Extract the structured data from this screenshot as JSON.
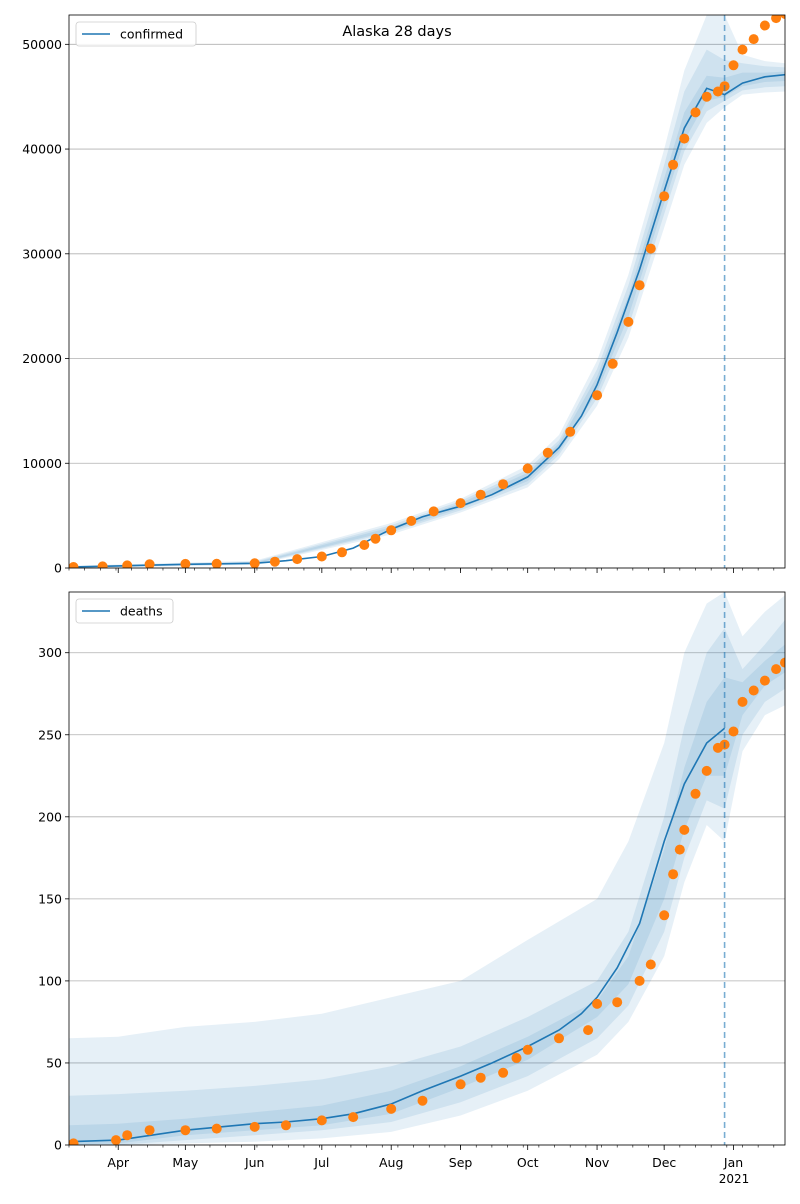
{
  "figure": {
    "title": "Alaska 28 days"
  },
  "colors": {
    "model": "#1f77b4",
    "observed": "#ff7f0e",
    "band": "#1f77b4",
    "grid": "#b0b0b0",
    "vline": "#1f77b4"
  },
  "month_labels": [
    "Apr",
    "May",
    "Jun",
    "Jul",
    "Aug",
    "Sep",
    "Oct",
    "Nov",
    "Dec",
    "Jan"
  ],
  "year_label": "2021",
  "chart_data": [
    {
      "type": "line",
      "legend": "confirmed",
      "legend_position": "upper-left",
      "grid": "horizontal",
      "x_range": [
        "2020-03-10",
        "2021-01-24"
      ],
      "forecast_start": "2020-12-28",
      "ylim": [
        0,
        52800
      ],
      "yticks": [
        0,
        10000,
        20000,
        30000,
        40000,
        50000
      ],
      "model_curve": {
        "x": [
          "2020-03-10",
          "2020-04-01",
          "2020-05-01",
          "2020-06-01",
          "2020-06-15",
          "2020-07-01",
          "2020-07-15",
          "2020-08-01",
          "2020-08-15",
          "2020-09-01",
          "2020-09-15",
          "2020-10-01",
          "2020-10-15",
          "2020-10-25",
          "2020-11-01",
          "2020-11-10",
          "2020-11-20",
          "2020-12-01",
          "2020-12-10",
          "2020-12-20",
          "2020-12-28",
          "2021-01-05",
          "2021-01-15",
          "2021-01-24"
        ],
        "y": [
          100,
          200,
          350,
          450,
          700,
          1100,
          1900,
          3700,
          4900,
          5900,
          7000,
          8700,
          11500,
          14500,
          17500,
          22500,
          28500,
          36000,
          42000,
          45800,
          45200,
          46300,
          46900,
          47100
        ]
      },
      "model_bands": [
        {
          "x": [
            "2020-03-10",
            "2020-06-01",
            "2020-08-01",
            "2020-09-01",
            "2020-10-01",
            "2020-10-15",
            "2020-11-01",
            "2020-11-15",
            "2020-12-01",
            "2020-12-10",
            "2020-12-20",
            "2020-12-28",
            "2021-01-05",
            "2021-01-15",
            "2021-01-24"
          ],
          "low": [
            0,
            300,
            3200,
            5300,
            7700,
            10400,
            15500,
            22000,
            32500,
            38500,
            42500,
            44000,
            45200,
            45400,
            45500
          ],
          "high": [
            200,
            700,
            4300,
            6600,
            9800,
            12700,
            19800,
            28000,
            40000,
            47500,
            52800,
            52800,
            49000,
            48400,
            48200
          ]
        },
        {
          "x": [
            "2020-03-10",
            "2020-06-01",
            "2020-08-01",
            "2020-09-01",
            "2020-10-01",
            "2020-10-15",
            "2020-11-01",
            "2020-11-15",
            "2020-12-01",
            "2020-12-10",
            "2020-12-20",
            "2020-12-28",
            "2021-01-05",
            "2021-01-15",
            "2021-01-24"
          ],
          "low": [
            30,
            350,
            3400,
            5500,
            8000,
            10800,
            16200,
            23000,
            33800,
            39800,
            43600,
            44600,
            45600,
            45900,
            46000
          ],
          "high": [
            170,
            600,
            4100,
            6400,
            9400,
            12200,
            19000,
            27000,
            38500,
            45500,
            49500,
            48500,
            48200,
            47900,
            47800
          ]
        },
        {
          "x": [
            "2020-03-10",
            "2020-06-01",
            "2020-08-01",
            "2020-09-01",
            "2020-10-01",
            "2020-10-15",
            "2020-11-01",
            "2020-11-15",
            "2020-12-01",
            "2020-12-10",
            "2020-12-20",
            "2020-12-28",
            "2021-01-05",
            "2021-01-15",
            "2021-01-24"
          ],
          "low": [
            60,
            400,
            3550,
            5700,
            8300,
            11100,
            16800,
            24000,
            34800,
            40800,
            44600,
            45000,
            46000,
            46400,
            46500
          ],
          "high": [
            140,
            520,
            3900,
            6200,
            9100,
            11900,
            18300,
            26000,
            37200,
            43500,
            47000,
            46800,
            47300,
            47300,
            47400
          ]
        }
      ],
      "observed_points": {
        "x": [
          "2020-03-12",
          "2020-03-25",
          "2020-04-05",
          "2020-04-15",
          "2020-05-01",
          "2020-05-15",
          "2020-06-01",
          "2020-06-10",
          "2020-06-20",
          "2020-07-01",
          "2020-07-10",
          "2020-07-20",
          "2020-07-25",
          "2020-08-01",
          "2020-08-10",
          "2020-08-20",
          "2020-09-01",
          "2020-09-10",
          "2020-09-20",
          "2020-10-01",
          "2020-10-10",
          "2020-10-20",
          "2020-11-01",
          "2020-11-08",
          "2020-11-15",
          "2020-11-20",
          "2020-11-25",
          "2020-12-01",
          "2020-12-05",
          "2020-12-10",
          "2020-12-15",
          "2020-12-20",
          "2020-12-25",
          "2020-12-28",
          "2021-01-01",
          "2021-01-05",
          "2021-01-10",
          "2021-01-15",
          "2021-01-20",
          "2021-01-24"
        ],
        "y": [
          100,
          150,
          250,
          350,
          390,
          400,
          450,
          600,
          850,
          1100,
          1500,
          2200,
          2800,
          3600,
          4500,
          5400,
          6200,
          7000,
          8000,
          9500,
          11000,
          13000,
          16500,
          19500,
          23500,
          27000,
          30500,
          35500,
          38500,
          41000,
          43500,
          45000,
          45500,
          46000,
          48000,
          49500,
          50500,
          51800,
          52500,
          52900
        ]
      }
    },
    {
      "type": "line",
      "legend": "deaths",
      "legend_position": "upper-left",
      "grid": "horizontal",
      "x_range": [
        "2020-03-10",
        "2021-01-24"
      ],
      "forecast_start": "2020-12-28",
      "ylim": [
        0,
        337
      ],
      "yticks": [
        0,
        50,
        100,
        150,
        200,
        250,
        300
      ],
      "model_curve": {
        "x": [
          "2020-03-10",
          "2020-04-01",
          "2020-05-01",
          "2020-06-01",
          "2020-06-15",
          "2020-07-01",
          "2020-07-15",
          "2020-08-01",
          "2020-08-15",
          "2020-09-01",
          "2020-09-15",
          "2020-10-01",
          "2020-10-15",
          "2020-10-25",
          "2020-11-01",
          "2020-11-10",
          "2020-11-20",
          "2020-12-01",
          "2020-12-10",
          "2020-12-20",
          "2020-12-28"
        ],
        "y": [
          2,
          3,
          9,
          13,
          14,
          16,
          19,
          25,
          33,
          42,
          50,
          60,
          70,
          80,
          90,
          108,
          135,
          185,
          220,
          245,
          254
        ]
      },
      "model_bands": [
        {
          "x": [
            "2020-03-10",
            "2020-04-01",
            "2020-05-01",
            "2020-06-01",
            "2020-07-01",
            "2020-08-01",
            "2020-09-01",
            "2020-10-01",
            "2020-11-01",
            "2020-11-15",
            "2020-12-01",
            "2020-12-10",
            "2020-12-20",
            "2020-12-28",
            "2021-01-05",
            "2021-01-15",
            "2021-01-24"
          ],
          "low": [
            0,
            0,
            1,
            2,
            4,
            8,
            18,
            33,
            55,
            75,
            115,
            160,
            195,
            185,
            240,
            262,
            268
          ],
          "high": [
            65,
            66,
            72,
            75,
            80,
            90,
            100,
            125,
            150,
            185,
            245,
            300,
            330,
            337,
            310,
            325,
            335
          ]
        },
        {
          "x": [
            "2020-03-10",
            "2020-04-01",
            "2020-05-01",
            "2020-06-01",
            "2020-07-01",
            "2020-08-01",
            "2020-09-01",
            "2020-10-01",
            "2020-11-01",
            "2020-11-15",
            "2020-12-01",
            "2020-12-10",
            "2020-12-20",
            "2020-12-28",
            "2021-01-05",
            "2021-01-15",
            "2021-01-24"
          ],
          "low": [
            0,
            0,
            3,
            6,
            9,
            14,
            26,
            42,
            65,
            85,
            130,
            175,
            210,
            205,
            250,
            270,
            278
          ],
          "high": [
            30,
            31,
            33,
            36,
            40,
            48,
            60,
            78,
            100,
            130,
            200,
            255,
            300,
            315,
            290,
            305,
            320
          ]
        },
        {
          "x": [
            "2020-03-10",
            "2020-04-01",
            "2020-05-01",
            "2020-06-01",
            "2020-07-01",
            "2020-08-01",
            "2020-09-01",
            "2020-10-01",
            "2020-11-01",
            "2020-11-15",
            "2020-12-01",
            "2020-12-10",
            "2020-12-20",
            "2020-12-28",
            "2021-01-05",
            "2021-01-15",
            "2021-01-24"
          ],
          "low": [
            0,
            1,
            6,
            9,
            12,
            19,
            35,
            52,
            78,
            98,
            150,
            192,
            225,
            225,
            262,
            280,
            288
          ],
          "high": [
            12,
            13,
            16,
            20,
            24,
            33,
            48,
            66,
            88,
            115,
            180,
            230,
            270,
            285,
            282,
            295,
            305
          ]
        }
      ],
      "observed_points": {
        "x": [
          "2020-03-12",
          "2020-03-31",
          "2020-04-05",
          "2020-04-15",
          "2020-05-01",
          "2020-05-15",
          "2020-06-01",
          "2020-06-15",
          "2020-07-01",
          "2020-07-15",
          "2020-08-01",
          "2020-08-15",
          "2020-09-01",
          "2020-09-10",
          "2020-09-20",
          "2020-09-26",
          "2020-10-01",
          "2020-10-15",
          "2020-10-28",
          "2020-11-01",
          "2020-11-10",
          "2020-11-20",
          "2020-11-25",
          "2020-12-01",
          "2020-12-05",
          "2020-12-08",
          "2020-12-10",
          "2020-12-15",
          "2020-12-20",
          "2020-12-25",
          "2020-12-28",
          "2021-01-01",
          "2021-01-05",
          "2021-01-10",
          "2021-01-15",
          "2021-01-20",
          "2021-01-24"
        ],
        "y": [
          1,
          3,
          6,
          9,
          9,
          10,
          11,
          12,
          15,
          17,
          22,
          27,
          37,
          41,
          44,
          53,
          58,
          65,
          70,
          86,
          87,
          100,
          110,
          140,
          165,
          180,
          192,
          214,
          228,
          242,
          244,
          252,
          270,
          277,
          283,
          290,
          294
        ]
      }
    }
  ]
}
